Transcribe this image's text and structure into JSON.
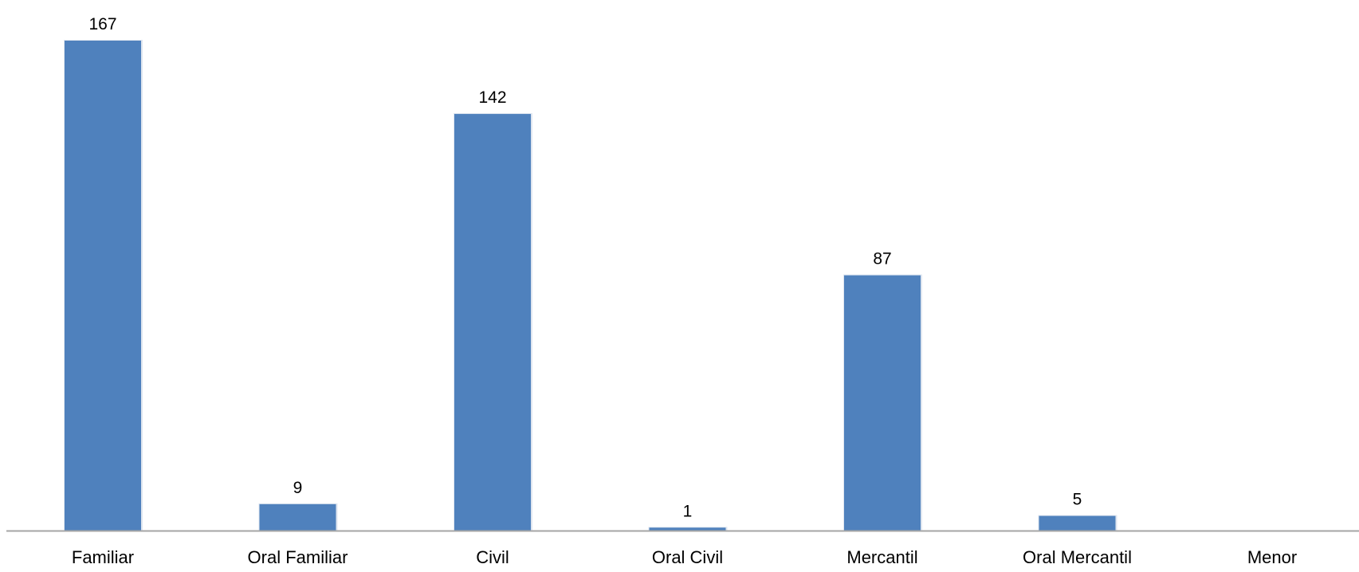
{
  "chart_data": {
    "type": "bar",
    "categories": [
      "Familiar",
      "Oral Familiar",
      "Civil",
      "Oral Civil",
      "Mercantil",
      "Oral Mercantil",
      "Menor"
    ],
    "values": [
      167,
      9,
      142,
      1,
      87,
      5,
      null
    ],
    "data_labels": [
      "167",
      "9",
      "142",
      "1",
      "87",
      "5",
      ""
    ],
    "title": "",
    "xlabel": "",
    "ylabel": "",
    "ylim": [
      0,
      167
    ],
    "grid": false,
    "legend": "none",
    "bar_color": "#4f81bd",
    "axis_color": "#a6a6a6"
  }
}
